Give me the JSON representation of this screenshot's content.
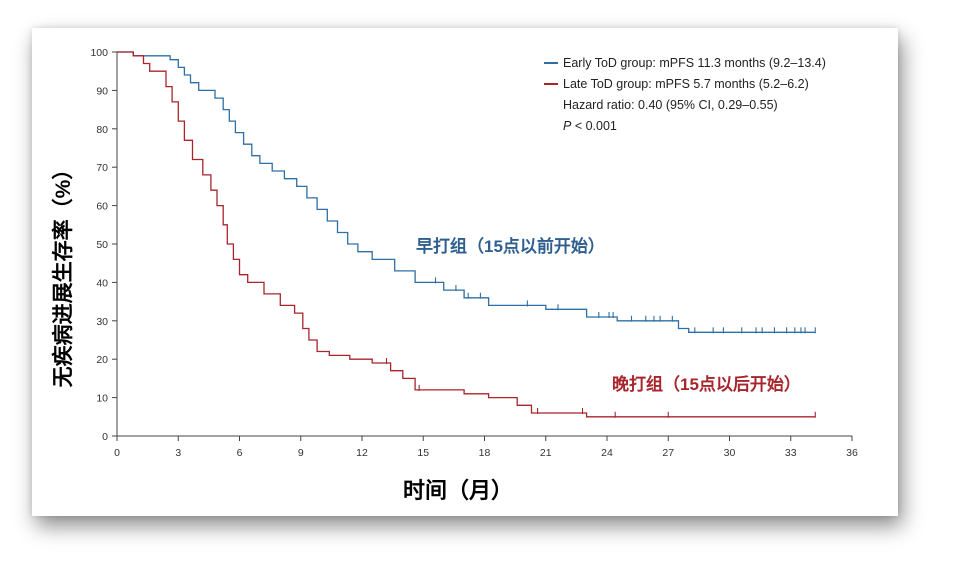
{
  "chart_data": {
    "type": "line",
    "subtype": "kaplan-meier",
    "title": "",
    "xlabel": "时间（月）",
    "ylabel": "无疾病进展生存率（%）",
    "xlim": [
      0,
      36
    ],
    "ylim": [
      0,
      100
    ],
    "xticks": [
      0,
      3,
      6,
      9,
      12,
      15,
      18,
      21,
      24,
      27,
      30,
      33,
      36
    ],
    "yticks": [
      0,
      10,
      20,
      30,
      40,
      50,
      60,
      70,
      80,
      90,
      100
    ],
    "grid": false,
    "legend_position": "top-right",
    "series": [
      {
        "name": "Early ToD group: mPFS 11.3 months (9.2–13.4)",
        "color": "#2f6fa3",
        "points": [
          [
            0,
            100
          ],
          [
            0.8,
            100
          ],
          [
            0.8,
            99
          ],
          [
            2.6,
            99
          ],
          [
            2.6,
            98
          ],
          [
            3.0,
            98
          ],
          [
            3.0,
            96
          ],
          [
            3.3,
            96
          ],
          [
            3.3,
            94
          ],
          [
            3.6,
            94
          ],
          [
            3.6,
            92
          ],
          [
            4.0,
            92
          ],
          [
            4.0,
            90
          ],
          [
            4.8,
            90
          ],
          [
            4.8,
            88
          ],
          [
            5.2,
            88
          ],
          [
            5.2,
            85
          ],
          [
            5.5,
            85
          ],
          [
            5.5,
            82
          ],
          [
            5.8,
            82
          ],
          [
            5.8,
            79
          ],
          [
            6.2,
            79
          ],
          [
            6.2,
            76
          ],
          [
            6.6,
            76
          ],
          [
            6.6,
            73
          ],
          [
            7.0,
            73
          ],
          [
            7.0,
            71
          ],
          [
            7.6,
            71
          ],
          [
            7.6,
            69
          ],
          [
            8.2,
            69
          ],
          [
            8.2,
            67
          ],
          [
            8.8,
            67
          ],
          [
            8.8,
            65
          ],
          [
            9.3,
            65
          ],
          [
            9.3,
            62
          ],
          [
            9.8,
            62
          ],
          [
            9.8,
            59
          ],
          [
            10.3,
            59
          ],
          [
            10.3,
            56
          ],
          [
            10.8,
            56
          ],
          [
            10.8,
            53
          ],
          [
            11.3,
            53
          ],
          [
            11.3,
            50
          ],
          [
            11.8,
            50
          ],
          [
            11.8,
            48
          ],
          [
            12.5,
            48
          ],
          [
            12.5,
            46
          ],
          [
            13.6,
            46
          ],
          [
            13.6,
            43
          ],
          [
            14.6,
            43
          ],
          [
            14.6,
            40
          ],
          [
            16.0,
            40
          ],
          [
            16.0,
            38
          ],
          [
            17.0,
            38
          ],
          [
            17.0,
            36
          ],
          [
            18.2,
            36
          ],
          [
            18.2,
            34
          ],
          [
            21.0,
            34
          ],
          [
            21.0,
            33
          ],
          [
            23.0,
            33
          ],
          [
            23.0,
            31
          ],
          [
            24.5,
            31
          ],
          [
            24.5,
            30
          ],
          [
            27.5,
            30
          ],
          [
            27.5,
            28
          ],
          [
            28.0,
            28
          ],
          [
            28.0,
            27
          ],
          [
            34.2,
            27
          ]
        ],
        "censor_times": [
          15.6,
          16.6,
          17.2,
          17.8,
          20.1,
          21.6,
          23.6,
          24.1,
          24.3,
          25.2,
          25.9,
          26.3,
          26.6,
          27.2,
          28.3,
          29.2,
          29.7,
          30.6,
          31.3,
          31.6,
          32.2,
          32.8,
          33.2,
          33.5,
          33.7,
          34.2
        ]
      },
      {
        "name": "Late ToD group: mPFS 5.7 months (5.2–6.2)",
        "color": "#a8252c",
        "points": [
          [
            0,
            100
          ],
          [
            0.8,
            100
          ],
          [
            0.8,
            99
          ],
          [
            1.3,
            99
          ],
          [
            1.3,
            97
          ],
          [
            1.6,
            97
          ],
          [
            1.6,
            95
          ],
          [
            2.4,
            95
          ],
          [
            2.4,
            91
          ],
          [
            2.7,
            91
          ],
          [
            2.7,
            87
          ],
          [
            3.0,
            87
          ],
          [
            3.0,
            82
          ],
          [
            3.3,
            82
          ],
          [
            3.3,
            77
          ],
          [
            3.7,
            77
          ],
          [
            3.7,
            72
          ],
          [
            4.2,
            72
          ],
          [
            4.2,
            68
          ],
          [
            4.6,
            68
          ],
          [
            4.6,
            64
          ],
          [
            4.9,
            64
          ],
          [
            4.9,
            60
          ],
          [
            5.2,
            60
          ],
          [
            5.2,
            55
          ],
          [
            5.4,
            55
          ],
          [
            5.4,
            50
          ],
          [
            5.7,
            50
          ],
          [
            5.7,
            46
          ],
          [
            6.0,
            46
          ],
          [
            6.0,
            42
          ],
          [
            6.4,
            42
          ],
          [
            6.4,
            40
          ],
          [
            7.2,
            40
          ],
          [
            7.2,
            37
          ],
          [
            8.0,
            37
          ],
          [
            8.0,
            34
          ],
          [
            8.7,
            34
          ],
          [
            8.7,
            32
          ],
          [
            9.1,
            32
          ],
          [
            9.1,
            28
          ],
          [
            9.4,
            28
          ],
          [
            9.4,
            25
          ],
          [
            9.8,
            25
          ],
          [
            9.8,
            22
          ],
          [
            10.4,
            22
          ],
          [
            10.4,
            21
          ],
          [
            11.4,
            21
          ],
          [
            11.4,
            20
          ],
          [
            12.5,
            20
          ],
          [
            12.5,
            19
          ],
          [
            13.4,
            19
          ],
          [
            13.4,
            17
          ],
          [
            14.0,
            17
          ],
          [
            14.0,
            15
          ],
          [
            14.6,
            15
          ],
          [
            14.6,
            12
          ],
          [
            17.0,
            12
          ],
          [
            17.0,
            11
          ],
          [
            18.2,
            11
          ],
          [
            18.2,
            10
          ],
          [
            19.6,
            10
          ],
          [
            19.6,
            8
          ],
          [
            20.3,
            8
          ],
          [
            20.3,
            6
          ],
          [
            23.0,
            6
          ],
          [
            23.0,
            5
          ],
          [
            34.2,
            5
          ]
        ],
        "censor_times": [
          13.2,
          14.8,
          20.6,
          22.8,
          24.4,
          27.0,
          34.2
        ]
      }
    ],
    "legend": {
      "entries": [
        "Early ToD group: mPFS 11.3 months (9.2–13.4)",
        "Late ToD group: mPFS 5.7 months (5.2–6.2)"
      ],
      "hazard_ratio": "Hazard ratio: 0.40 (95% CI, 0.29–0.55)",
      "p_prefix": "P",
      "p_value": " < 0.001"
    },
    "annotations": {
      "early": "早打组（15点以前开始）",
      "late": "晚打组（15点以后开始）"
    }
  }
}
